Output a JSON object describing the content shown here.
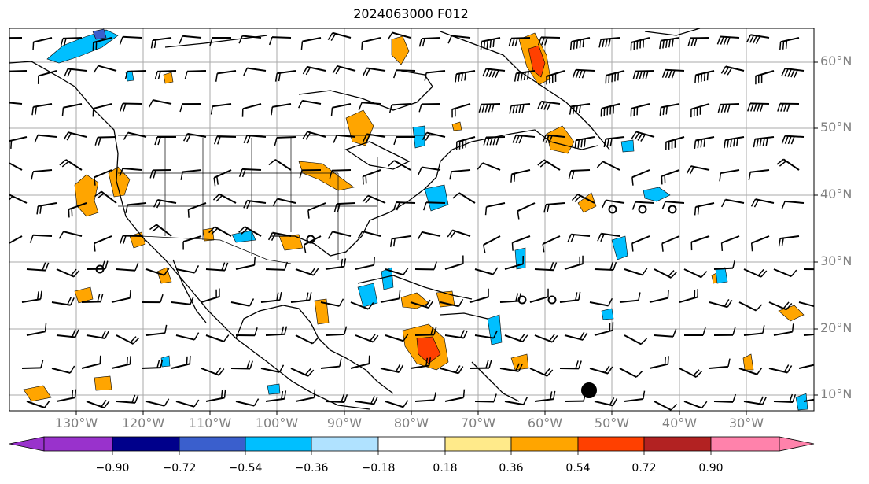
{
  "title": "2024063000 F012",
  "lon_labels": [
    "130°W",
    "120°W",
    "110°W",
    "100°W",
    "90°W",
    "80°W",
    "70°W",
    "60°W",
    "50°W",
    "40°W",
    "30°W"
  ],
  "lat_labels": [
    "60°N",
    "50°N",
    "40°N",
    "30°N",
    "20°N",
    "10°N"
  ],
  "colorbar": {
    "ticks": [
      "−0.90",
      "−0.72",
      "−0.54",
      "−0.36",
      "−0.18",
      "0.18",
      "0.36",
      "0.54",
      "0.72",
      "0.90"
    ],
    "colors": [
      "#9932cc",
      "#00008b",
      "#3a5fcd",
      "#00bfff",
      "#b0e2ff",
      "#ffffff",
      "#ffea8a",
      "#ffa500",
      "#ff4000",
      "#b22222",
      "#ff82ab"
    ]
  },
  "markers": {
    "hurricane": {
      "lon": -54,
      "lat": 10.5
    },
    "open_circles": [
      [
        -50,
        38.5
      ],
      [
        -45.5,
        38.5
      ],
      [
        -41.5,
        38.5
      ],
      [
        -97,
        33.5
      ],
      [
        -129,
        29
      ],
      [
        -65.5,
        25
      ],
      [
        -61,
        25
      ]
    ]
  }
}
